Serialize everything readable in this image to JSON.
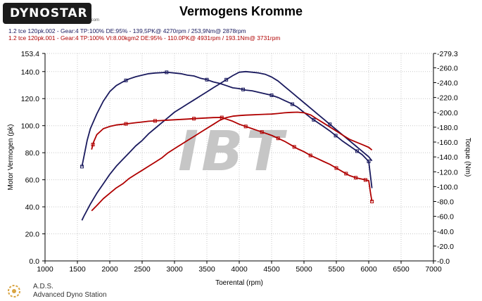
{
  "logo": {
    "text": "DYNOSTAR",
    "sub": ".com"
  },
  "chart_data": {
    "type": "line",
    "title": "Vermogens Kromme",
    "xlabel": "Toerental (rpm)",
    "ylabel_left": "Motor Vermogen (pk)",
    "ylabel_right": "Torque (Nm)",
    "xlim": [
      1000,
      7000
    ],
    "ylim_left": [
      0,
      153.4
    ],
    "ylim_right": [
      0,
      279.3
    ],
    "x_ticks": [
      "1000",
      "1500",
      "2000",
      "2500",
      "3000",
      "3500",
      "4000",
      "4500",
      "5000",
      "5500",
      "6000",
      "6500",
      "7000"
    ],
    "y_left_ticks": [
      "153.4",
      "140.0",
      "120.0",
      "100.0",
      "80.0",
      "60.0",
      "40.0",
      "20.0",
      "0.0"
    ],
    "y_right_ticks": [
      "-279.3",
      "-260.0",
      "-240.0",
      "-220.0",
      "-200.0",
      "-180.0",
      "-160.0",
      "-140.0",
      "-120.0",
      "-100.0",
      "-80.0",
      "-60.0",
      "-40.0",
      "-20.0",
      "-0.0"
    ],
    "grid": true,
    "legend": [
      {
        "text": "1.2 tce 120pk.002 - Gear:4 TP:100% DE:95%   - 139,5PK@ 4270rpm / 253,9Nm@ 2878rpm",
        "color": "#1a1a5e"
      },
      {
        "text": "1.2 tce 120pk.001 - Gear:4 TP:100% VI:8.00kgm2 DE:95%   - 110.0PK@ 4931rpm / 193.1Nm@ 3731rpm",
        "color": "#b00000"
      }
    ],
    "series": [
      {
        "axis": "left",
        "color": "#1a1a5e",
        "x": [
          1570,
          1600,
          1700,
          1800,
          1900,
          2000,
          2100,
          2200,
          2300,
          2400,
          2500,
          2600,
          2700,
          2800,
          2900,
          3000,
          3100,
          3200,
          3300,
          3400,
          3500,
          3600,
          3700,
          3800,
          3900,
          4000,
          4100,
          4200,
          4300,
          4400,
          4500,
          4600,
          4700,
          4800,
          4900,
          5000,
          5100,
          5200,
          5300,
          5400,
          5500,
          5600,
          5700,
          5800,
          5900,
          6000,
          6050
        ],
        "values": [
          30,
          33,
          42,
          50,
          57,
          64,
          70,
          75,
          80,
          85,
          89,
          94,
          98,
          102,
          106,
          110,
          113,
          116,
          119,
          122,
          125,
          128,
          131,
          134,
          137,
          139.5,
          140,
          139.5,
          139,
          138,
          136,
          133,
          129,
          125,
          121,
          117,
          113,
          109,
          105,
          101,
          97,
          93,
          89,
          85,
          81,
          77,
          74
        ]
      },
      {
        "axis": "right",
        "color": "#1a1a5e",
        "x": [
          1570,
          1600,
          1650,
          1700,
          1800,
          1900,
          2000,
          2100,
          2200,
          2300,
          2400,
          2500,
          2600,
          2700,
          2800,
          2878,
          2900,
          3000,
          3100,
          3200,
          3300,
          3400,
          3500,
          3600,
          3700,
          3800,
          3900,
          4000,
          4100,
          4200,
          4300,
          4400,
          4500,
          4600,
          4700,
          4800,
          4900,
          5000,
          5100,
          5200,
          5300,
          5400,
          5500,
          5600,
          5700,
          5800,
          5900,
          6000,
          6050
        ],
        "values": [
          127,
          140,
          162,
          178,
          198,
          215,
          228,
          236,
          241,
          245,
          248,
          250,
          252,
          253,
          253.5,
          253.9,
          253.8,
          253,
          252,
          250,
          249,
          246,
          244,
          241,
          239,
          236,
          233,
          232,
          230,
          229,
          227,
          225,
          223,
          220,
          216,
          212,
          207,
          200,
          193,
          187,
          181,
          175,
          168,
          161,
          155,
          149,
          143,
          134,
          98
        ]
      },
      {
        "axis": "left",
        "color": "#b00000",
        "x": [
          1720,
          1800,
          1900,
          2000,
          2100,
          2200,
          2300,
          2400,
          2500,
          2600,
          2700,
          2800,
          2900,
          3000,
          3100,
          3200,
          3300,
          3400,
          3500,
          3600,
          3700,
          3800,
          3900,
          4000,
          4100,
          4200,
          4300,
          4400,
          4500,
          4600,
          4700,
          4800,
          4900,
          5000,
          5100,
          5200,
          5300,
          5400,
          5500,
          5600,
          5700,
          5800,
          5900,
          6000,
          6050
        ],
        "values": [
          37,
          41,
          46,
          50,
          54,
          57,
          61,
          64,
          67,
          70,
          73,
          76,
          80,
          83,
          86,
          89,
          92,
          95,
          98,
          101,
          104,
          106,
          107,
          107.5,
          107.8,
          108,
          108.2,
          108.4,
          108.6,
          109,
          109.5,
          109.8,
          110,
          109.5,
          108,
          105,
          102,
          99,
          96,
          93,
          90,
          88,
          86,
          84,
          82
        ]
      },
      {
        "axis": "right",
        "color": "#b00000",
        "x": [
          1720,
          1750,
          1800,
          1900,
          2000,
          2100,
          2200,
          2300,
          2400,
          2500,
          2600,
          2700,
          2800,
          2900,
          3000,
          3100,
          3200,
          3300,
          3400,
          3500,
          3600,
          3731,
          3800,
          3900,
          4000,
          4100,
          4200,
          4300,
          4400,
          4500,
          4600,
          4700,
          4800,
          4900,
          5000,
          5100,
          5200,
          5300,
          5400,
          5500,
          5600,
          5700,
          5800,
          5900,
          6000,
          6030,
          6050
        ],
        "values": [
          150,
          160,
          170,
          178,
          181,
          183,
          184,
          185,
          186,
          187,
          188,
          188.5,
          189,
          189.5,
          190,
          190.5,
          191,
          191.5,
          192,
          192.5,
          193,
          193.1,
          191,
          188,
          184,
          181,
          178,
          175,
          172,
          169,
          165,
          161,
          156,
          151,
          147,
          142,
          138,
          134,
          130,
          125,
          120,
          115,
          112,
          110,
          108,
          90,
          80
        ]
      }
    ],
    "markers": [
      {
        "series": 1,
        "x": [
          1570,
          2250,
          2878,
          3500,
          4060,
          4500,
          4820,
          5150,
          5490,
          5820,
          6000
        ]
      },
      {
        "series": 0,
        "x": [
          3800,
          5400
        ]
      },
      {
        "series": 3,
        "x": [
          1740,
          2250,
          2700,
          3300,
          3731,
          4100,
          4350,
          4600,
          4850,
          5100,
          5500,
          5650,
          5800,
          5950,
          6050
        ]
      }
    ],
    "watermark": "IBT"
  },
  "footer": {
    "brand": "A.D.S.",
    "sub": "Advanced Dyno Station"
  }
}
